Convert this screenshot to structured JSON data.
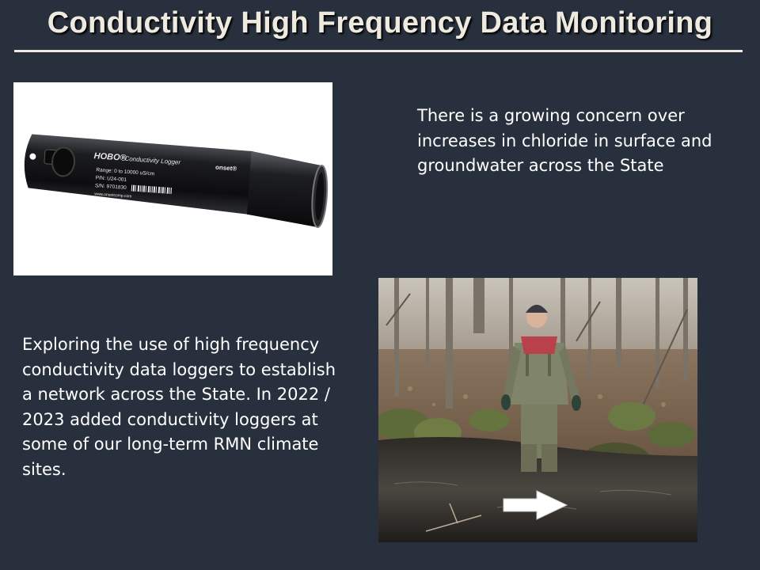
{
  "slide": {
    "title": "Conductivity High Frequency Data Monitoring",
    "text_top_right": "There is a growing concern over increases in chloride in surface and groundwater across the State",
    "text_bottom_left": "Exploring the use of high frequency conductivity data loggers to establish a network across the State.  In 2022 / 2023 added conductivity loggers at some of our long-term RMN climate sites."
  },
  "logger_image": {
    "brand": "HOBO®",
    "model": "Conductivity Logger",
    "maker": "onset®",
    "range": "Range: 0 to 10000 uS/cm",
    "part_number": "P/N: U24-001",
    "serial_number": "S/N: 9701830",
    "website": "www.onsetcomp.com"
  },
  "field_photo": {
    "arrow_icon": "right-arrow-icon"
  },
  "colors": {
    "background": "#29303d",
    "title": "#eeeadf",
    "body_text": "#ffffff"
  }
}
